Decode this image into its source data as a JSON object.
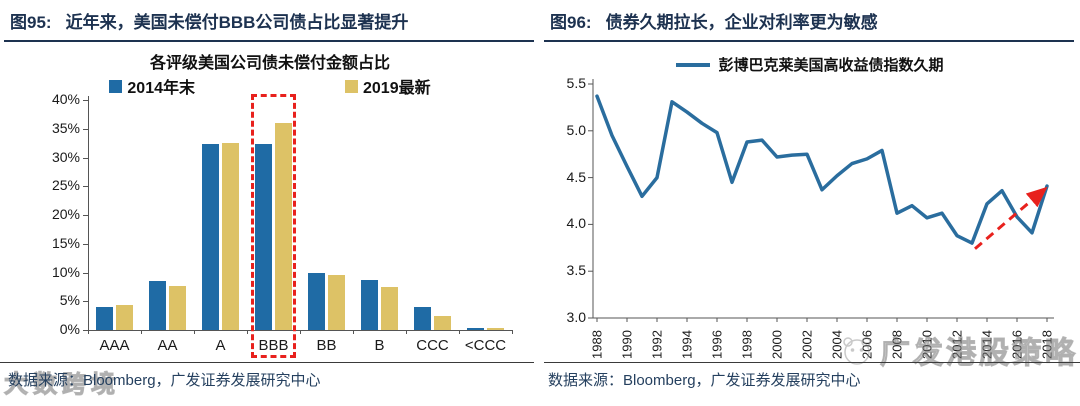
{
  "colors": {
    "navy_header": "#1d3250",
    "source_text": "#25405f",
    "bar_blue": "#1f6ba5",
    "bar_gold": "#ddc266",
    "line_blue": "#2a6d9e",
    "highlight_red": "#e8211d",
    "axis_gray": "#555555"
  },
  "panels": {
    "left": {
      "fig_label": "图95:",
      "header": "近年来，美国未偿付BBB公司债占比显著提升",
      "source": "数据来源：Bloomberg，广发证券发展研究中心",
      "watermark": "大数跨境"
    },
    "right": {
      "fig_label": "图96:",
      "header": "债券久期拉长，企业对利率更为敏感",
      "source": "数据来源：Bloomberg，广发证券发展研究中心",
      "watermark": "广发港股策略"
    }
  },
  "chart_data": [
    {
      "type": "bar",
      "title": "各评级美国公司债未偿付金额占比",
      "categories": [
        "AAA",
        "AA",
        "A",
        "BBB",
        "BB",
        "B",
        "CCC",
        "<CCC"
      ],
      "series": [
        {
          "name": "2014年末",
          "color": "#1f6ba5",
          "values": [
            4.0,
            8.6,
            32.3,
            32.3,
            9.9,
            8.7,
            4.0,
            0.4
          ]
        },
        {
          "name": "2019最新",
          "color": "#ddc266",
          "values": [
            4.3,
            7.6,
            32.5,
            36.0,
            9.6,
            7.4,
            2.5,
            0.4
          ]
        }
      ],
      "ylim": [
        0,
        40
      ],
      "ytick_step": 5,
      "ytick_suffix": "%",
      "grid": false,
      "legend_position": "top",
      "highlight_category": "BBB"
    },
    {
      "type": "line",
      "legend": "彭博巴克莱美国高收益债指数久期",
      "line_color": "#2a6d9e",
      "x": [
        1988,
        1989,
        1990,
        1991,
        1992,
        1993,
        1994,
        1995,
        1996,
        1997,
        1998,
        1999,
        2000,
        2001,
        2002,
        2003,
        2004,
        2005,
        2006,
        2007,
        2008,
        2009,
        2010,
        2011,
        2012,
        2013,
        2014,
        2015,
        2016,
        2017,
        2018
      ],
      "values": [
        5.37,
        4.95,
        4.62,
        4.3,
        4.5,
        5.31,
        5.2,
        5.08,
        4.98,
        4.45,
        4.88,
        4.9,
        4.72,
        4.74,
        4.75,
        4.37,
        4.52,
        4.65,
        4.7,
        4.79,
        4.12,
        4.2,
        4.07,
        4.12,
        3.88,
        3.8,
        4.22,
        4.36,
        4.08,
        3.91,
        4.41
      ],
      "ylim": [
        3.0,
        5.5
      ],
      "ytick_step": 0.5,
      "xtick_step": 2,
      "grid": false,
      "legend_position": "top",
      "annotation": {
        "type": "dashed_arrow",
        "from": {
          "x": 2013,
          "y": 3.74
        },
        "to": {
          "x": 2018,
          "y": 4.36
        },
        "color": "#e8211d"
      }
    }
  ]
}
